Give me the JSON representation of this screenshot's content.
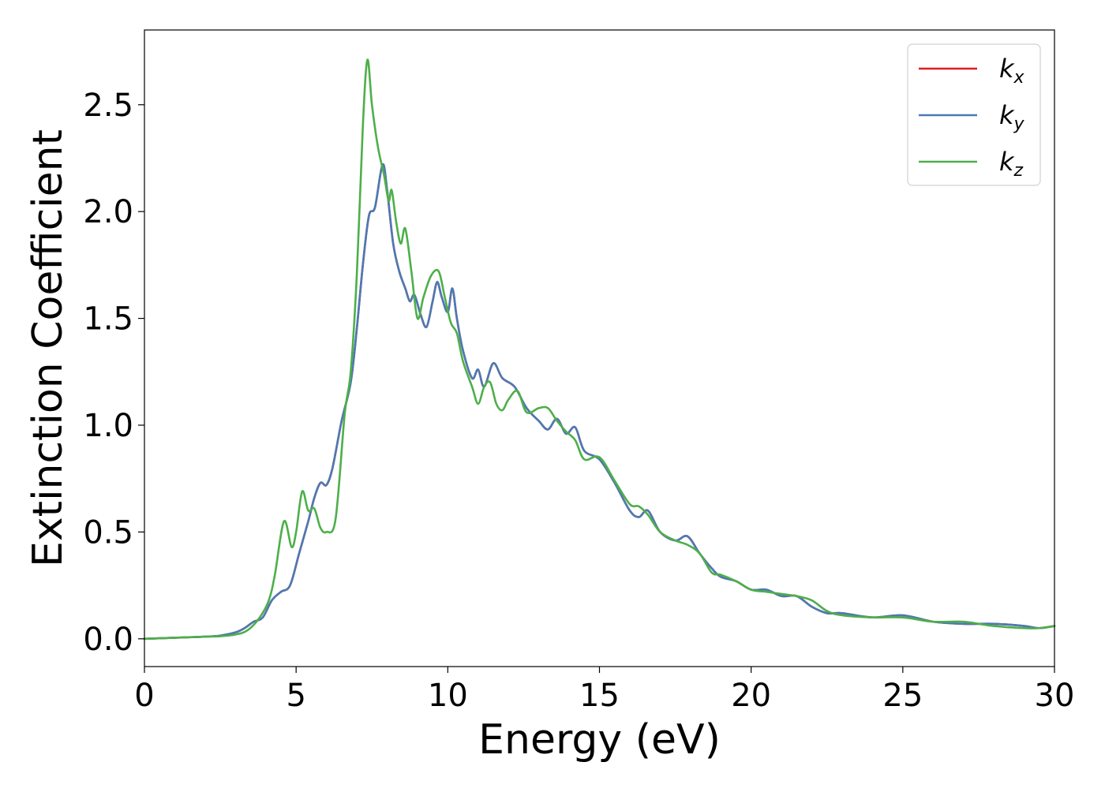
{
  "chart_data": {
    "type": "line",
    "xlabel": "Energy (eV)",
    "ylabel": "Extinction Coefficient",
    "xlim": [
      0,
      30
    ],
    "ylim": [
      -0.13,
      2.85
    ],
    "xticks": [
      "0",
      "5",
      "10",
      "15",
      "20",
      "25",
      "30"
    ],
    "yticks": [
      "0.0",
      "0.5",
      "1.0",
      "1.5",
      "2.0",
      "2.5"
    ],
    "grid": false,
    "legend_position": "top-right",
    "series": [
      {
        "name": "k",
        "subscript": "x",
        "color": "#e41a1c",
        "x": [
          0,
          1,
          2,
          2.5,
          3.0,
          3.3,
          3.6,
          3.9,
          4.2,
          4.5,
          4.8,
          5.1,
          5.4,
          5.6,
          5.8,
          6.0,
          6.2,
          6.5,
          6.8,
          7.0,
          7.2,
          7.4,
          7.6,
          7.85,
          8.0,
          8.2,
          8.4,
          8.6,
          8.75,
          8.9,
          9.1,
          9.3,
          9.5,
          9.65,
          9.8,
          10.0,
          10.15,
          10.3,
          10.5,
          10.8,
          11.0,
          11.2,
          11.5,
          11.8,
          12.2,
          12.6,
          13.0,
          13.3,
          13.6,
          13.9,
          14.2,
          14.5,
          15.0,
          15.5,
          16.0,
          16.3,
          16.6,
          17.0,
          17.5,
          17.9,
          18.3,
          18.7,
          19.0,
          19.5,
          20.0,
          20.5,
          21.0,
          21.5,
          22.0,
          22.5,
          23.0,
          24.0,
          25.0,
          26.0,
          27.0,
          28.0,
          29.0,
          29.5,
          30.0
        ],
        "values": [
          0.0,
          0.005,
          0.01,
          0.015,
          0.03,
          0.05,
          0.08,
          0.1,
          0.18,
          0.22,
          0.25,
          0.4,
          0.55,
          0.66,
          0.73,
          0.72,
          0.8,
          1.02,
          1.2,
          1.45,
          1.75,
          1.98,
          2.02,
          2.22,
          2.1,
          1.85,
          1.72,
          1.64,
          1.58,
          1.61,
          1.52,
          1.46,
          1.58,
          1.67,
          1.6,
          1.53,
          1.64,
          1.5,
          1.35,
          1.22,
          1.26,
          1.18,
          1.29,
          1.22,
          1.18,
          1.08,
          1.02,
          0.98,
          1.03,
          0.96,
          0.99,
          0.88,
          0.84,
          0.73,
          0.6,
          0.57,
          0.6,
          0.5,
          0.46,
          0.48,
          0.4,
          0.33,
          0.29,
          0.27,
          0.23,
          0.23,
          0.2,
          0.2,
          0.15,
          0.12,
          0.12,
          0.1,
          0.11,
          0.08,
          0.07,
          0.07,
          0.06,
          0.05,
          0.06
        ]
      },
      {
        "name": "k",
        "subscript": "y",
        "color": "#4a7ab5",
        "x": [
          0,
          1,
          2,
          2.5,
          3.0,
          3.3,
          3.6,
          3.9,
          4.2,
          4.5,
          4.8,
          5.1,
          5.4,
          5.6,
          5.8,
          6.0,
          6.2,
          6.5,
          6.8,
          7.0,
          7.2,
          7.4,
          7.6,
          7.85,
          8.0,
          8.2,
          8.4,
          8.6,
          8.75,
          8.9,
          9.1,
          9.3,
          9.5,
          9.65,
          9.8,
          10.0,
          10.15,
          10.3,
          10.5,
          10.8,
          11.0,
          11.2,
          11.5,
          11.8,
          12.2,
          12.6,
          13.0,
          13.3,
          13.6,
          13.9,
          14.2,
          14.5,
          15.0,
          15.5,
          16.0,
          16.3,
          16.6,
          17.0,
          17.5,
          17.9,
          18.3,
          18.7,
          19.0,
          19.5,
          20.0,
          20.5,
          21.0,
          21.5,
          22.0,
          22.5,
          23.0,
          24.0,
          25.0,
          26.0,
          27.0,
          28.0,
          29.0,
          29.5,
          30.0
        ],
        "values": [
          0.0,
          0.005,
          0.01,
          0.015,
          0.03,
          0.05,
          0.08,
          0.1,
          0.18,
          0.22,
          0.25,
          0.4,
          0.55,
          0.66,
          0.73,
          0.72,
          0.8,
          1.02,
          1.2,
          1.45,
          1.75,
          1.98,
          2.02,
          2.22,
          2.1,
          1.85,
          1.72,
          1.64,
          1.58,
          1.61,
          1.52,
          1.46,
          1.58,
          1.67,
          1.6,
          1.53,
          1.64,
          1.5,
          1.35,
          1.22,
          1.26,
          1.18,
          1.29,
          1.22,
          1.18,
          1.08,
          1.02,
          0.98,
          1.03,
          0.96,
          0.99,
          0.88,
          0.84,
          0.73,
          0.6,
          0.57,
          0.6,
          0.5,
          0.46,
          0.48,
          0.4,
          0.33,
          0.29,
          0.27,
          0.23,
          0.23,
          0.2,
          0.2,
          0.15,
          0.12,
          0.12,
          0.1,
          0.11,
          0.08,
          0.07,
          0.07,
          0.06,
          0.05,
          0.06
        ]
      },
      {
        "name": "k",
        "subscript": "z",
        "color": "#4daf4a",
        "x": [
          0,
          1,
          2,
          2.5,
          3.0,
          3.4,
          3.8,
          4.1,
          4.3,
          4.6,
          4.85,
          5.0,
          5.2,
          5.4,
          5.6,
          5.8,
          6.0,
          6.3,
          6.6,
          6.8,
          7.0,
          7.2,
          7.35,
          7.5,
          7.7,
          7.9,
          8.05,
          8.15,
          8.3,
          8.45,
          8.6,
          8.8,
          9.0,
          9.2,
          9.45,
          9.7,
          9.9,
          10.1,
          10.3,
          10.5,
          10.8,
          11.0,
          11.2,
          11.4,
          11.6,
          11.8,
          12.0,
          12.3,
          12.6,
          13.0,
          13.3,
          13.6,
          13.9,
          14.2,
          14.5,
          15.0,
          15.5,
          16.0,
          16.3,
          16.6,
          17.0,
          17.5,
          17.9,
          18.3,
          18.7,
          19.0,
          19.5,
          20.0,
          20.5,
          21.0,
          21.5,
          22.0,
          22.5,
          23.0,
          24.0,
          25.0,
          26.0,
          27.0,
          28.0,
          29.0,
          29.5,
          30.0
        ],
        "values": [
          0.0,
          0.005,
          0.01,
          0.012,
          0.02,
          0.04,
          0.1,
          0.18,
          0.3,
          0.55,
          0.43,
          0.5,
          0.69,
          0.6,
          0.61,
          0.52,
          0.5,
          0.56,
          1.05,
          1.25,
          1.7,
          2.4,
          2.71,
          2.5,
          2.3,
          2.17,
          2.05,
          2.1,
          1.95,
          1.85,
          1.92,
          1.72,
          1.5,
          1.6,
          1.7,
          1.72,
          1.6,
          1.48,
          1.43,
          1.3,
          1.18,
          1.1,
          1.18,
          1.2,
          1.1,
          1.07,
          1.12,
          1.16,
          1.06,
          1.08,
          1.08,
          1.02,
          0.97,
          0.93,
          0.84,
          0.85,
          0.74,
          0.63,
          0.62,
          0.58,
          0.5,
          0.46,
          0.44,
          0.4,
          0.31,
          0.3,
          0.27,
          0.23,
          0.22,
          0.21,
          0.2,
          0.18,
          0.13,
          0.11,
          0.1,
          0.1,
          0.08,
          0.08,
          0.06,
          0.05,
          0.05,
          0.06
        ]
      }
    ]
  }
}
